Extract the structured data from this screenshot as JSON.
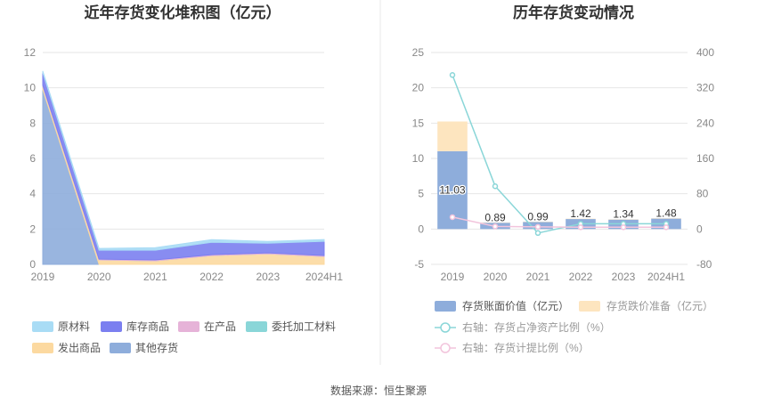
{
  "source_note": "数据来源：恒生聚源",
  "chart_data": [
    {
      "type": "area",
      "stacked": true,
      "title": "近年存货变化堆积图（亿元）",
      "categories": [
        "2019",
        "2020",
        "2021",
        "2022",
        "2023",
        "2024H1"
      ],
      "ylim": [
        0,
        12
      ],
      "yticks": [
        "0",
        "2",
        "4",
        "6",
        "8",
        "10",
        "12"
      ],
      "grid": true,
      "legend_position": "bottom",
      "series": [
        {
          "name": "其他存货",
          "color": "#8eaddb",
          "values": [
            9.9,
            0.0,
            0.0,
            0.0,
            0.0,
            0.0
          ]
        },
        {
          "name": "发出商品",
          "color": "#fcd9a0",
          "values": [
            0.2,
            0.25,
            0.2,
            0.5,
            0.6,
            0.45
          ]
        },
        {
          "name": "委托加工材料",
          "color": "#8ad6d8",
          "values": [
            0.0,
            0.0,
            0.0,
            0.0,
            0.0,
            0.0
          ]
        },
        {
          "name": "在产品",
          "color": "#e6b3d8",
          "values": [
            0.05,
            0.05,
            0.05,
            0.05,
            0.05,
            0.05
          ]
        },
        {
          "name": "库存商品",
          "color": "#7b7ff0",
          "values": [
            0.7,
            0.5,
            0.55,
            0.7,
            0.55,
            0.8
          ]
        },
        {
          "name": "原材料",
          "color": "#a9dcf5",
          "values": [
            0.1,
            0.1,
            0.15,
            0.15,
            0.1,
            0.1
          ]
        }
      ],
      "legend_order": [
        "原材料",
        "库存商品",
        "在产品",
        "委托加工材料",
        "发出商品",
        "其他存货"
      ]
    },
    {
      "type": "bar",
      "title": "历年存货变动情况",
      "categories": [
        "2019",
        "2020",
        "2021",
        "2022",
        "2023",
        "2024H1"
      ],
      "ylim": [
        -5,
        25
      ],
      "yticks": [
        "-5",
        "0",
        "5",
        "10",
        "15",
        "20",
        "25"
      ],
      "y2lim": [
        -80,
        400
      ],
      "y2ticks": [
        "-80",
        "0",
        "80",
        "160",
        "240",
        "320",
        "400"
      ],
      "grid": true,
      "legend_position": "bottom",
      "series": [
        {
          "name": "存货账面价值（亿元）",
          "type": "bar",
          "stack": "a",
          "axis": "left",
          "color": "#8eaddb",
          "values": [
            11.03,
            0.89,
            0.99,
            1.42,
            1.34,
            1.48
          ],
          "labels": [
            "11.03",
            "0.89",
            "0.99",
            "1.42",
            "1.34",
            "1.48"
          ]
        },
        {
          "name": "存货跌价准备（亿元）",
          "type": "bar",
          "stack": "a",
          "axis": "left",
          "color": "#fde5bf",
          "values": [
            4.2,
            0.05,
            0.05,
            0.05,
            0.05,
            0.05
          ]
        },
        {
          "name": "右轴：存货占净资产比例（%）",
          "type": "line",
          "axis": "right",
          "color": "#8ad6d8",
          "values": [
            349,
            97,
            -9,
            12,
            12,
            12
          ]
        },
        {
          "name": "右轴：存货计提比例（%）",
          "type": "line",
          "axis": "right",
          "color": "#f2c4dc",
          "values": [
            27,
            6,
            5,
            4,
            4,
            4
          ]
        }
      ]
    }
  ]
}
